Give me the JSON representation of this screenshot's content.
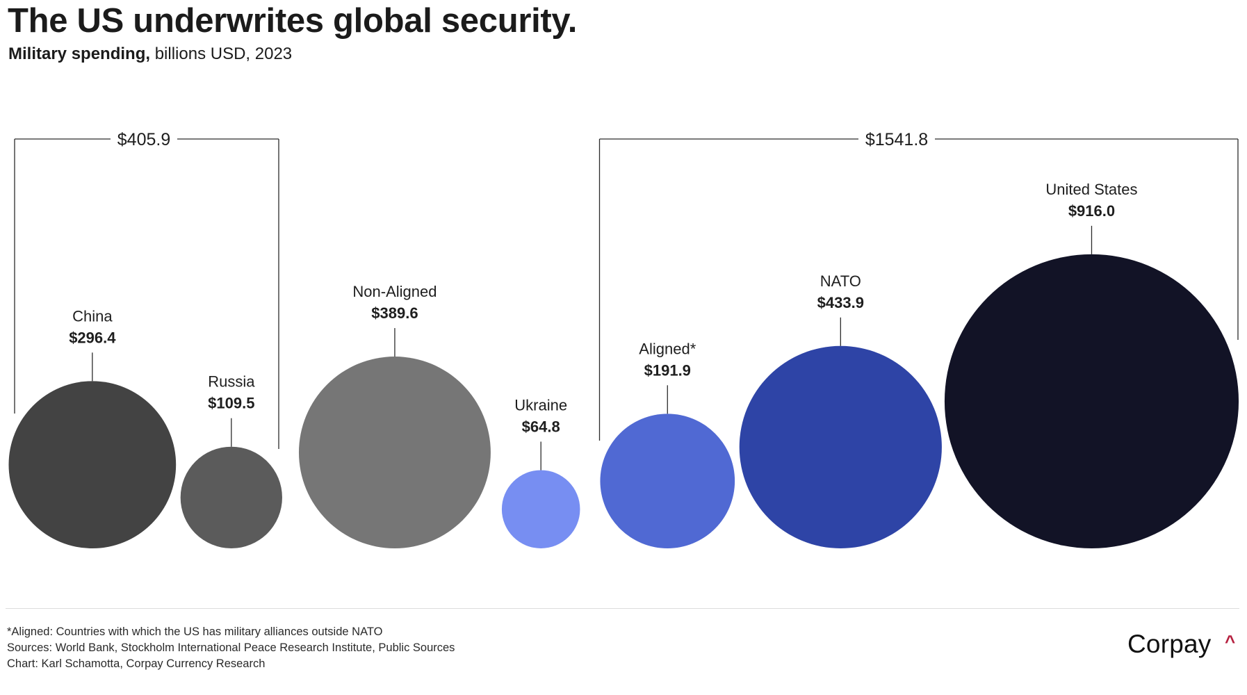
{
  "header": {
    "title": "The US underwrites global security.",
    "subtitle_strong": "Military spending,",
    "subtitle_rest": " billions USD, 2023"
  },
  "chart_data": {
    "type": "bubble",
    "title": "The US underwrites global security.",
    "subtitle": "Military spending, billions USD, 2023",
    "unit": "billions USD",
    "value_prefix": "$",
    "encoding": "circle area proportional to value",
    "series": [
      {
        "name": "China",
        "value": 296.4,
        "label": "$296.4",
        "color": "#434343",
        "group": "left"
      },
      {
        "name": "Russia",
        "value": 109.5,
        "label": "$109.5",
        "color": "#5b5b5b",
        "group": "left"
      },
      {
        "name": "Non-Aligned",
        "value": 389.6,
        "label": "$389.6",
        "color": "#767676",
        "group": null
      },
      {
        "name": "Ukraine",
        "value": 64.8,
        "label": "$64.8",
        "color": "#778ef2",
        "group": null
      },
      {
        "name": "Aligned*",
        "value": 191.9,
        "label": "$191.9",
        "color": "#5069d3",
        "group": "right"
      },
      {
        "name": "NATO",
        "value": 433.9,
        "label": "$433.9",
        "color": "#2e44a6",
        "group": "right"
      },
      {
        "name": "United States",
        "value": 916.0,
        "label": "$916.0",
        "color": "#121326",
        "group": "right"
      }
    ],
    "brackets": [
      {
        "members": [
          "China",
          "Russia"
        ],
        "total": 405.9,
        "label": "$405.9"
      },
      {
        "members": [
          "Aligned*",
          "NATO",
          "United States"
        ],
        "total": 1541.8,
        "label": "$1541.8"
      }
    ]
  },
  "footer": {
    "notes": [
      "*Aligned: Countries with which the US has military alliances outside NATO",
      "Sources: World Bank, Stockholm International Peace Research Institute, Public Sources",
      "Chart: Karl Schamotta, Corpay Currency Research"
    ],
    "logo_text": "Corpay",
    "logo_mark": "^",
    "logo_accent_color": "#b5203f"
  }
}
